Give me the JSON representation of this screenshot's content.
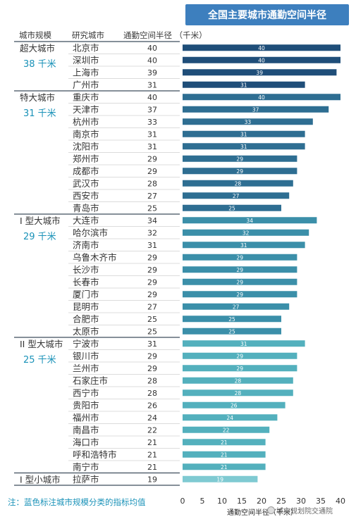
{
  "title": "全国主要城市通勤空间半径",
  "headers": {
    "scale": "城市规模",
    "city": "研究城市",
    "radius": "通勤空间半径 （千米）"
  },
  "note": "注：蓝色标注城市规模分类的指标均值",
  "watermark": "城市规划院交通院",
  "colors": {
    "title_bg": "#3d7fbe",
    "accent_text": "#1a92b8",
    "text": "#333333",
    "divider": "#3f4e5c"
  },
  "chart_data": {
    "type": "bar",
    "orientation": "horizontal",
    "xlabel": "通勤空间半径（千米）",
    "xlim": [
      0,
      40
    ],
    "xticks": [
      0,
      5,
      10,
      15,
      20,
      25,
      30,
      35,
      40
    ],
    "groups": [
      {
        "name": "超大城市",
        "avg": "38 千米",
        "color": "#1f4e79",
        "cities": [
          "北京市",
          "深圳市",
          "上海市",
          "广州市"
        ],
        "values": [
          40,
          40,
          39,
          31
        ]
      },
      {
        "name": "特大城市",
        "avg": "31 千米",
        "color": "#2e6e92",
        "cities": [
          "重庆市",
          "天津市",
          "杭州市",
          "南京市",
          "沈阳市",
          "郑州市",
          "成都市",
          "武汉市",
          "西安市",
          "青岛市"
        ],
        "values": [
          40,
          37,
          33,
          31,
          31,
          29,
          29,
          28,
          27,
          25
        ]
      },
      {
        "name": "I 型大城市",
        "avg": "29 千米",
        "color": "#3b8fa9",
        "cities": [
          "大连市",
          "哈尔滨市",
          "济南市",
          "乌鲁木齐市",
          "长沙市",
          "长春市",
          "厦门市",
          "昆明市",
          "合肥市",
          "太原市"
        ],
        "values": [
          34,
          32,
          31,
          29,
          29,
          29,
          29,
          27,
          25,
          25
        ]
      },
      {
        "name": "II 型大城市",
        "avg": "25 千米",
        "color": "#53b0bd",
        "cities": [
          "宁波市",
          "银川市",
          "兰州市",
          "石家庄市",
          "西宁市",
          "贵阳市",
          "福州市",
          "南昌市",
          "海口市",
          "呼和浩特市",
          "南宁市"
        ],
        "values": [
          31,
          29,
          29,
          28,
          28,
          26,
          24,
          22,
          21,
          21,
          21
        ]
      },
      {
        "name": "I 型小城市",
        "avg": "",
        "color": "#7fcad2",
        "cities": [
          "拉萨市"
        ],
        "values": [
          19
        ]
      }
    ]
  }
}
